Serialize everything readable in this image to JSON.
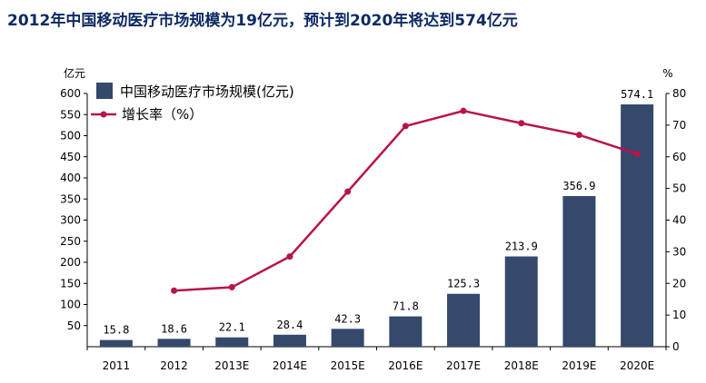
{
  "title": "2012年中国移动医疗市场规模为19亿元，预计到2020年将达到574亿元",
  "chart_data": {
    "type": "bar",
    "categories": [
      "2011",
      "2012",
      "2013E",
      "2014E",
      "2015E",
      "2016E",
      "2017E",
      "2018E",
      "2019E",
      "2020E"
    ],
    "series": [
      {
        "name": "中国移动医疗市场规模(亿元)",
        "type": "bar",
        "axis": "left",
        "color": "#34496b",
        "values": [
          15.8,
          18.6,
          22.1,
          28.4,
          42.3,
          71.8,
          125.3,
          213.9,
          356.9,
          574.1
        ],
        "labels": [
          "15.8",
          "18.6",
          "22.1",
          "28.4",
          "42.3",
          "71.8",
          "125.3",
          "213.9",
          "356.9",
          "574.1"
        ]
      },
      {
        "name": "增长率（%）",
        "type": "line",
        "axis": "right",
        "color": "#b8144a",
        "values": [
          null,
          17.7,
          18.8,
          28.5,
          49.0,
          69.7,
          74.5,
          70.6,
          66.9,
          60.9
        ]
      }
    ],
    "y_left": {
      "unit": "亿元",
      "ylim": [
        0,
        600
      ],
      "ticks": [
        50,
        100,
        150,
        200,
        250,
        300,
        350,
        400,
        450,
        500,
        550,
        600
      ]
    },
    "y_right": {
      "unit": "%",
      "ylim": [
        0,
        80
      ],
      "ticks": [
        0,
        10,
        20,
        30,
        40,
        50,
        60,
        70,
        80
      ]
    },
    "legend_placement": "top-left",
    "grid": false
  }
}
